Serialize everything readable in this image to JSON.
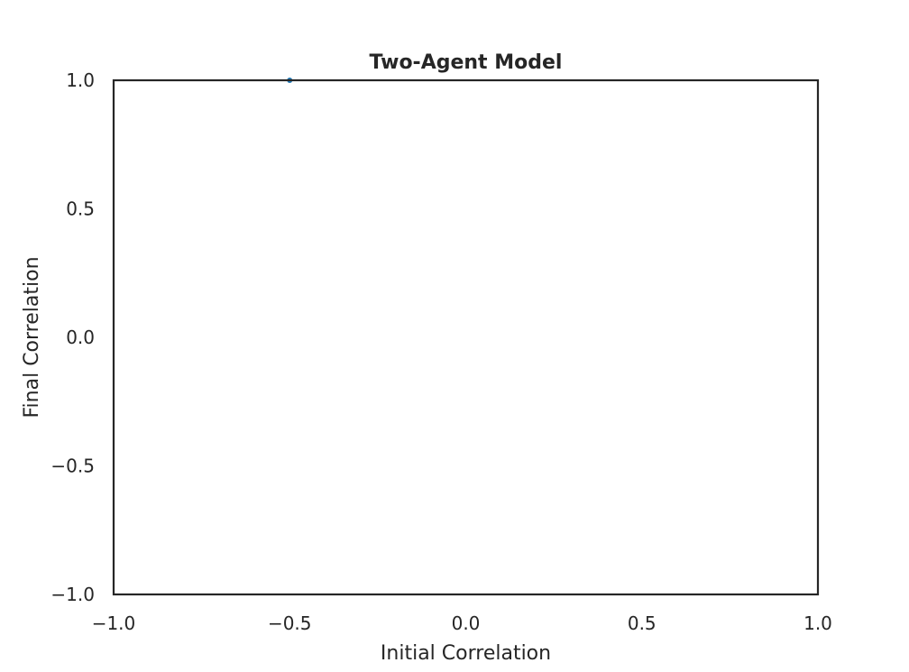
{
  "chart_data": {
    "type": "scatter",
    "title": "Two-Agent Model",
    "xlabel": "Initial Correlation",
    "ylabel": "Final Correlation",
    "xlim": [
      -1.0,
      1.0
    ],
    "ylim": [
      -1.0,
      1.0
    ],
    "xticks": [
      -1.0,
      -0.5,
      0.0,
      0.5,
      1.0
    ],
    "yticks": [
      -1.0,
      -0.5,
      0.0,
      0.5,
      1.0
    ],
    "xtick_labels": [
      "−1.0",
      "−0.5",
      "0.0",
      "0.5",
      "1.0"
    ],
    "ytick_labels": [
      "−1.0",
      "−0.5",
      "0.0",
      "0.5",
      "1.0"
    ],
    "grid": false,
    "series": [
      {
        "color": "#1f77b4",
        "points": [
          {
            "x": -0.5,
            "y": 1.0
          }
        ]
      }
    ]
  }
}
